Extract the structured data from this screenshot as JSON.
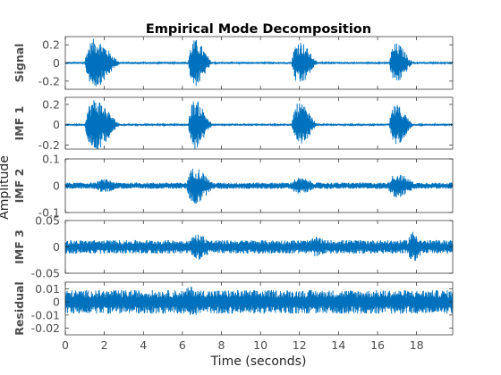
{
  "chart_data": {
    "type": "line",
    "title": "Empirical Mode Decomposition",
    "xlabel": "Time (seconds)",
    "ylabel": "Amplitude",
    "xlim": [
      0,
      19.85
    ],
    "xticks": [
      0,
      2,
      4,
      6,
      8,
      10,
      12,
      14,
      16,
      18
    ],
    "xtick_labels": [
      "0",
      "2",
      "4",
      "6",
      "8",
      "10",
      "12",
      "14",
      "16",
      "18"
    ],
    "grid": false,
    "line_color": "#0072bd",
    "panels": [
      {
        "name": "Signal",
        "ylim": [
          -0.29,
          0.29
        ],
        "yticks": [
          -0.2,
          0,
          0.2
        ],
        "ytick_labels": [
          "-0.2",
          "0",
          "0.2"
        ],
        "bursts": [
          [
            1.0,
            2.9,
            0.27
          ],
          [
            6.3,
            7.6,
            0.26
          ],
          [
            11.6,
            13.0,
            0.25
          ],
          [
            16.6,
            17.9,
            0.22
          ]
        ],
        "baseline_amplitude": 0.012
      },
      {
        "name": "IMF 1",
        "ylim": [
          -0.24,
          0.27
        ],
        "yticks": [
          -0.2,
          0,
          0.2
        ],
        "ytick_labels": [
          "-0.2",
          "0",
          "0.2"
        ],
        "bursts": [
          [
            1.0,
            2.9,
            0.26
          ],
          [
            6.3,
            7.6,
            0.25
          ],
          [
            11.6,
            13.0,
            0.22
          ],
          [
            16.6,
            17.9,
            0.2
          ]
        ],
        "baseline_amplitude": 0.01
      },
      {
        "name": "IMF 2",
        "ylim": [
          -0.1,
          0.1
        ],
        "yticks": [
          -0.1,
          0,
          0.1
        ],
        "ytick_labels": [
          "-0.1",
          "0",
          "0.1"
        ],
        "bursts": [
          [
            1.5,
            3.2,
            0.025
          ],
          [
            6.2,
            7.8,
            0.07
          ],
          [
            11.5,
            13.3,
            0.03
          ],
          [
            16.5,
            18.3,
            0.045
          ]
        ],
        "baseline_amplitude": 0.012
      },
      {
        "name": "IMF 3",
        "ylim": [
          -0.05,
          0.05
        ],
        "yticks": [
          -0.05,
          0,
          0.05
        ],
        "ytick_labels": [
          "-0.05",
          "0",
          "0.05"
        ],
        "bursts": [
          [
            6.3,
            8.0,
            0.025
          ],
          [
            12.5,
            13.8,
            0.02
          ],
          [
            17.5,
            18.6,
            0.03
          ]
        ],
        "baseline_amplitude": 0.013
      },
      {
        "name": "Residual",
        "ylim": [
          -0.025,
          0.015
        ],
        "yticks": [
          -0.02,
          -0.01,
          0,
          0.01
        ],
        "ytick_labels": [
          "-0.02",
          "-0.01",
          "0",
          "0.01"
        ],
        "bursts": [
          [
            6.0,
            7.5,
            0.012
          ],
          [
            12.0,
            13.5,
            0.008
          ],
          [
            16.5,
            18.0,
            0.009
          ]
        ],
        "baseline_amplitude": 0.009
      }
    ]
  }
}
